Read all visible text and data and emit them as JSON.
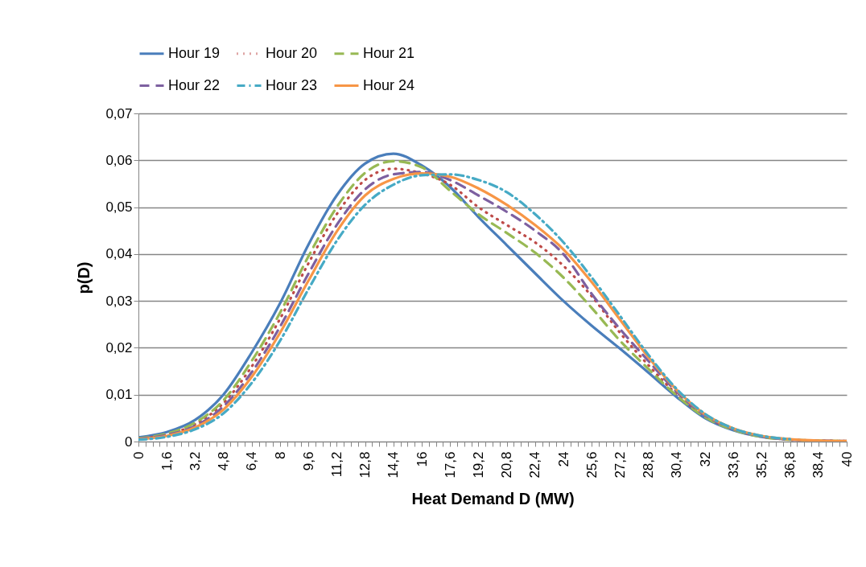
{
  "chart_data": {
    "type": "line",
    "xlabel": "Heat Demand D (MW)",
    "ylabel": "p(D)",
    "legend": "top",
    "grid": "y",
    "x": [
      0,
      1.6,
      3.2,
      4.8,
      6.4,
      8,
      9.6,
      11.2,
      12.8,
      14.4,
      16,
      17.6,
      19.2,
      20.8,
      22.4,
      24,
      25.6,
      27.2,
      28.8,
      30.4,
      32,
      33.6,
      35.2,
      36.8,
      38.4,
      40
    ],
    "xlim": [
      0,
      40
    ],
    "xticks": [
      {
        "value": 0,
        "label": "0"
      },
      {
        "value": 0.4,
        "label": null
      },
      {
        "value": 0.8,
        "label": null
      },
      {
        "value": 1.2,
        "label": null
      },
      {
        "value": 1.6,
        "label": "1,6"
      },
      {
        "value": 2,
        "label": null
      },
      {
        "value": 2.4,
        "label": null
      },
      {
        "value": 2.8,
        "label": null
      },
      {
        "value": 3.2,
        "label": "3,2"
      },
      {
        "value": 3.6,
        "label": null
      },
      {
        "value": 4,
        "label": null
      },
      {
        "value": 4.4,
        "label": null
      },
      {
        "value": 4.8,
        "label": "4,8"
      },
      {
        "value": 5.2,
        "label": null
      },
      {
        "value": 5.6,
        "label": null
      },
      {
        "value": 6,
        "label": null
      },
      {
        "value": 6.4,
        "label": "6,4"
      },
      {
        "value": 6.8,
        "label": null
      },
      {
        "value": 7.2,
        "label": null
      },
      {
        "value": 7.6,
        "label": null
      },
      {
        "value": 8,
        "label": "8"
      },
      {
        "value": 8.4,
        "label": null
      },
      {
        "value": 8.8,
        "label": null
      },
      {
        "value": 9.2,
        "label": null
      },
      {
        "value": 9.6,
        "label": "9,6"
      },
      {
        "value": 10,
        "label": null
      },
      {
        "value": 10.4,
        "label": null
      },
      {
        "value": 10.8,
        "label": null
      },
      {
        "value": 11.2,
        "label": "11,2"
      },
      {
        "value": 11.6,
        "label": null
      },
      {
        "value": 12,
        "label": null
      },
      {
        "value": 12.4,
        "label": null
      },
      {
        "value": 12.8,
        "label": "12,8"
      },
      {
        "value": 13.2,
        "label": null
      },
      {
        "value": 13.6,
        "label": null
      },
      {
        "value": 14,
        "label": null
      },
      {
        "value": 14.4,
        "label": "14,4"
      },
      {
        "value": 14.8,
        "label": null
      },
      {
        "value": 15.2,
        "label": null
      },
      {
        "value": 15.6,
        "label": null
      },
      {
        "value": 16,
        "label": "16"
      },
      {
        "value": 16.4,
        "label": null
      },
      {
        "value": 16.8,
        "label": null
      },
      {
        "value": 17.2,
        "label": null
      },
      {
        "value": 17.6,
        "label": "17,6"
      },
      {
        "value": 18,
        "label": null
      },
      {
        "value": 18.4,
        "label": null
      },
      {
        "value": 18.8,
        "label": null
      },
      {
        "value": 19.2,
        "label": "19,2"
      },
      {
        "value": 19.6,
        "label": null
      },
      {
        "value": 20,
        "label": null
      },
      {
        "value": 20.4,
        "label": null
      },
      {
        "value": 20.8,
        "label": "20,8"
      },
      {
        "value": 21.2,
        "label": null
      },
      {
        "value": 21.6,
        "label": null
      },
      {
        "value": 22,
        "label": null
      },
      {
        "value": 22.4,
        "label": "22,4"
      },
      {
        "value": 22.8,
        "label": null
      },
      {
        "value": 23.2,
        "label": null
      },
      {
        "value": 23.6,
        "label": null
      },
      {
        "value": 24,
        "label": "24"
      },
      {
        "value": 24.4,
        "label": null
      },
      {
        "value": 24.8,
        "label": null
      },
      {
        "value": 25.2,
        "label": null
      },
      {
        "value": 25.6,
        "label": "25,6"
      },
      {
        "value": 26,
        "label": null
      },
      {
        "value": 26.4,
        "label": null
      },
      {
        "value": 26.8,
        "label": null
      },
      {
        "value": 27.2,
        "label": "27,2"
      },
      {
        "value": 27.6,
        "label": null
      },
      {
        "value": 28,
        "label": null
      },
      {
        "value": 28.4,
        "label": null
      },
      {
        "value": 28.8,
        "label": "28,8"
      },
      {
        "value": 29.2,
        "label": null
      },
      {
        "value": 29.6,
        "label": null
      },
      {
        "value": 30,
        "label": null
      },
      {
        "value": 30.4,
        "label": "30,4"
      },
      {
        "value": 30.8,
        "label": null
      },
      {
        "value": 31.2,
        "label": null
      },
      {
        "value": 31.6,
        "label": null
      },
      {
        "value": 32,
        "label": "32"
      },
      {
        "value": 32.4,
        "label": null
      },
      {
        "value": 32.8,
        "label": null
      },
      {
        "value": 33.2,
        "label": null
      },
      {
        "value": 33.6,
        "label": "33,6"
      },
      {
        "value": 34,
        "label": null
      },
      {
        "value": 34.4,
        "label": null
      },
      {
        "value": 34.8,
        "label": null
      },
      {
        "value": 35.2,
        "label": "35,2"
      },
      {
        "value": 35.6,
        "label": null
      },
      {
        "value": 36,
        "label": null
      },
      {
        "value": 36.4,
        "label": null
      },
      {
        "value": 36.8,
        "label": "36,8"
      },
      {
        "value": 37.2,
        "label": null
      },
      {
        "value": 37.6,
        "label": null
      },
      {
        "value": 38,
        "label": null
      },
      {
        "value": 38.4,
        "label": "38,4"
      },
      {
        "value": 38.8,
        "label": null
      },
      {
        "value": 39.2,
        "label": null
      },
      {
        "value": 39.6,
        "label": null
      },
      {
        "value": 40,
        "label": "40"
      }
    ],
    "ylim": [
      0,
      0.07
    ],
    "yticks": [
      0,
      {
        "value": 0.01,
        "label": "0,01"
      },
      {
        "value": 0.02,
        "label": "0,02"
      },
      {
        "value": 0.03,
        "label": "0,03"
      },
      {
        "value": 0.04,
        "label": "0,04"
      },
      {
        "value": 0.05,
        "label": "0,05"
      },
      {
        "value": 0.06,
        "label": "0,06"
      },
      {
        "value": 0.07,
        "label": "0,07"
      }
    ],
    "series": [
      {
        "name": "Hour 19",
        "color": "#4a7ebb",
        "line_style": "solid",
        "values": [
          0.0009,
          0.002,
          0.0046,
          0.01,
          0.019,
          0.0295,
          0.042,
          0.0525,
          0.0593,
          0.0614,
          0.0589,
          0.0543,
          0.0479,
          0.0419,
          0.0359,
          0.03,
          0.0247,
          0.0198,
          0.0147,
          0.0095,
          0.005,
          0.0024,
          0.001,
          0.0005,
          null,
          null
        ]
      },
      {
        "name": "Hour 20",
        "color": "#be4b48",
        "line_style": "dotted",
        "values": [
          0.0006,
          0.0015,
          0.0037,
          0.0082,
          0.016,
          0.0262,
          0.038,
          0.0485,
          0.0558,
          0.0582,
          0.0572,
          0.0548,
          0.05,
          0.0462,
          0.0425,
          0.0375,
          0.031,
          0.0232,
          0.0163,
          0.0101,
          0.0054,
          0.0026,
          0.0011,
          0.0004,
          0.0002,
          0.0001
        ]
      },
      {
        "name": "Hour 21",
        "color": "#98b954",
        "line_style": "dashed",
        "values": [
          0.0007,
          0.0017,
          0.004,
          0.0088,
          0.0172,
          0.0275,
          0.0395,
          0.05,
          0.0573,
          0.0598,
          0.0585,
          0.0535,
          0.0485,
          0.0445,
          0.0403,
          0.035,
          0.0285,
          0.0215,
          0.0155,
          0.0098,
          0.0052,
          0.0025,
          0.001,
          0.0004,
          0.0002,
          0.0001
        ]
      },
      {
        "name": "Hour 22",
        "color": "#7d60a0",
        "line_style": "dashed",
        "values": [
          0.0006,
          0.0014,
          0.0033,
          0.0075,
          0.0148,
          0.0245,
          0.0358,
          0.0462,
          0.0538,
          0.057,
          0.0575,
          0.0558,
          0.0525,
          0.049,
          0.045,
          0.04,
          0.0315,
          0.024,
          0.0172,
          0.0106,
          0.0056,
          0.0027,
          0.0011,
          0.0004,
          0.0002,
          0.0001
        ]
      },
      {
        "name": "Hour 23",
        "color": "#46aac5",
        "line_style": "dashdot",
        "values": [
          0.0004,
          0.001,
          0.0026,
          0.006,
          0.0125,
          0.0215,
          0.0325,
          0.0428,
          0.0505,
          0.0548,
          0.0568,
          0.057,
          0.0558,
          0.0532,
          0.0485,
          0.0425,
          0.035,
          0.0268,
          0.0185,
          0.0112,
          0.0059,
          0.0028,
          0.0012,
          0.0005,
          null,
          null
        ]
      },
      {
        "name": "Hour 24",
        "color": "#f79646",
        "line_style": "solid",
        "values": [
          0.0005,
          0.0012,
          0.003,
          0.0068,
          0.0138,
          0.0232,
          0.0343,
          0.0448,
          0.0525,
          0.056,
          0.0572,
          0.0565,
          0.054,
          0.0505,
          0.0462,
          0.041,
          0.034,
          0.026,
          0.018,
          0.011,
          0.0058,
          0.0028,
          0.0012,
          0.0005,
          0.0002,
          0.0001
        ]
      }
    ]
  }
}
